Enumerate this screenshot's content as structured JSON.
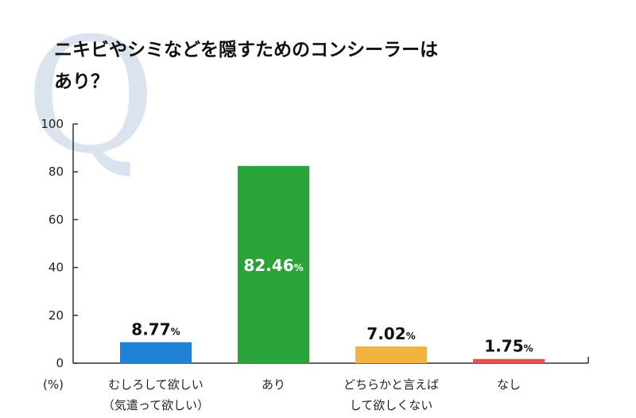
{
  "title_lines": [
    "ニキビやシミなどを隠すためのコンシーラーは",
    "あり？"
  ],
  "watermark": "Q",
  "chart_data": {
    "type": "bar",
    "categories": [
      [
        "むしろして欲しい",
        "（気遣って欲しい）"
      ],
      [
        "あり"
      ],
      [
        "どちらかと言えば",
        "して欲しくない"
      ],
      [
        "なし"
      ]
    ],
    "values": [
      8.77,
      82.46,
      7.02,
      1.75
    ],
    "value_labels": [
      "8.77%",
      "82.46%",
      "7.02%",
      "1.75%"
    ],
    "bar_colors": [
      "#1f82d6",
      "#2aa339",
      "#f3b33f",
      "#e8524a"
    ],
    "ylim": [
      0,
      100
    ],
    "yticks": [
      "0",
      "20",
      "40",
      "60",
      "80",
      "100"
    ],
    "ylabel": "(%)",
    "grid": false
  }
}
